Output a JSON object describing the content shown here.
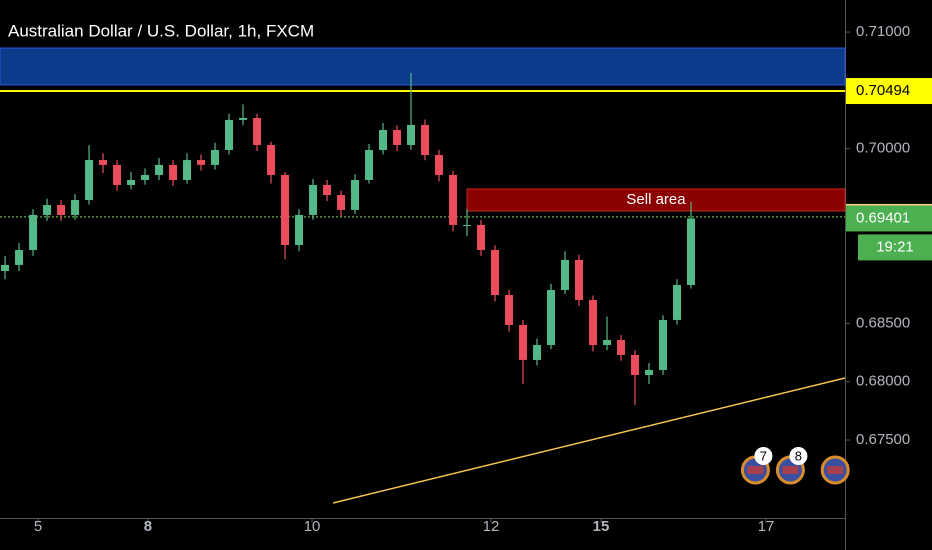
{
  "chart_data": {
    "type": "candlestick",
    "title": "Australian Dollar / U.S. Dollar, 1h, FXCM",
    "up_color": "#53b987",
    "down_color": "#eb4d5c",
    "xlim": [
      -0.36,
      60
    ],
    "ylim": [
      0.66831,
      0.71275
    ],
    "xticks": [
      {
        "value": 2.36,
        "label": "5"
      },
      {
        "value": 10.21,
        "label": "8",
        "bold": true
      },
      {
        "value": 21.93,
        "label": "10"
      },
      {
        "value": 34.71,
        "label": "12"
      },
      {
        "value": 42.57,
        "label": "15",
        "bold": true
      },
      {
        "value": 54.36,
        "label": "17"
      }
    ],
    "yticks": [
      {
        "value": 0.675,
        "label": "0.67500"
      },
      {
        "value": 0.68,
        "label": "0.68000"
      },
      {
        "value": 0.685,
        "label": "0.68500"
      },
      {
        "value": 0.7,
        "label": "0.70000"
      },
      {
        "value": 0.71,
        "label": "0.71000"
      }
    ],
    "open": [
      0.6895,
      0.69002,
      0.6913,
      0.69431,
      0.69516,
      0.69431,
      0.69559,
      0.69902,
      0.6986,
      0.69688,
      0.69731,
      0.69774,
      0.6986,
      0.69731,
      0.69902,
      0.6986,
      0.69988,
      0.70246,
      0.70263,
      0.70031,
      0.69774,
      0.69173,
      0.69431,
      0.69688,
      0.69602,
      0.69474,
      0.69731,
      0.69988,
      0.7016,
      0.70031,
      0.70203,
      0.69945,
      0.69774,
      0.69345,
      0.69345,
      0.6913,
      0.68744,
      0.68487,
      0.68187,
      0.68315,
      0.68787,
      0.69045,
      0.68701,
      0.68315,
      0.68358,
      0.6823,
      0.68058,
      0.68101,
      0.6853,
      0.6883
    ],
    "high": [
      0.6908,
      0.6919,
      0.6948,
      0.6957,
      0.6956,
      0.6961,
      0.7003,
      0.6996,
      0.699,
      0.698,
      0.6983,
      0.6992,
      0.699,
      0.6996,
      0.6995,
      0.7005,
      0.703,
      0.7038,
      0.703,
      0.7006,
      0.698,
      0.6948,
      0.6974,
      0.6973,
      0.6964,
      0.6978,
      0.7004,
      0.7022,
      0.702,
      0.7065,
      0.7025,
      0.6999,
      0.6981,
      0.6948,
      0.6939,
      0.6917,
      0.6879,
      0.6853,
      0.6837,
      0.6884,
      0.6912,
      0.6909,
      0.6874,
      0.6856,
      0.684,
      0.6827,
      0.6816,
      0.6857,
      0.6888,
      0.69542
    ],
    "low": [
      0.6888,
      0.6895,
      0.6908,
      0.6938,
      0.6938,
      0.6939,
      0.6952,
      0.6979,
      0.6964,
      0.6965,
      0.6969,
      0.6973,
      0.6968,
      0.697,
      0.6981,
      0.6982,
      0.6995,
      0.702,
      0.6998,
      0.697,
      0.6905,
      0.6912,
      0.6939,
      0.6955,
      0.6942,
      0.6944,
      0.697,
      0.6995,
      0.6998,
      0.6999,
      0.699,
      0.6972,
      0.6929,
      0.6925,
      0.6908,
      0.6869,
      0.6843,
      0.6798,
      0.6814,
      0.6828,
      0.6875,
      0.6865,
      0.6826,
      0.6827,
      0.6818,
      0.678,
      0.6798,
      0.6806,
      0.6849,
      0.688
    ],
    "close": [
      0.69002,
      0.6913,
      0.69431,
      0.69516,
      0.69431,
      0.69559,
      0.69902,
      0.6986,
      0.69688,
      0.69731,
      0.69774,
      0.6986,
      0.69731,
      0.69902,
      0.6986,
      0.69988,
      0.70246,
      0.70263,
      0.70031,
      0.69774,
      0.69173,
      0.69431,
      0.69688,
      0.69602,
      0.69474,
      0.69731,
      0.69988,
      0.7016,
      0.70031,
      0.70203,
      0.69945,
      0.69774,
      0.69345,
      0.69345,
      0.6913,
      0.68744,
      0.68487,
      0.68187,
      0.68315,
      0.68787,
      0.69045,
      0.68701,
      0.68315,
      0.68358,
      0.6823,
      0.68058,
      0.68101,
      0.6853,
      0.6883,
      0.69401
    ],
    "zones": [
      {
        "top": 0.70863,
        "bottom": 0.70546,
        "color": "#0d3b8c"
      },
      {
        "top": 0.69654,
        "bottom": 0.69465,
        "x0": 33.0,
        "color": "#8b0000",
        "label": "Sell area"
      }
    ],
    "hlines": [
      {
        "value": 0.70494,
        "color": "#ffff00",
        "dashed": false
      },
      {
        "value": 0.69414,
        "color": "#7ed957",
        "dashed": true
      }
    ],
    "trendline": {
      "x": [
        23.43,
        60
      ],
      "y": [
        0.6696,
        0.68032
      ],
      "color": "#f5c452"
    },
    "price_labels": [
      {
        "value": 0.70494,
        "color": "#ffff00"
      },
      {
        "value": 0.69414,
        "color": "#ffd27a"
      },
      {
        "value": 0.69401,
        "color": "#4caf50",
        "countdown": "19:21"
      }
    ],
    "events": [
      {
        "x": 53.6,
        "label": "7"
      },
      {
        "x": 56.1,
        "label": "8"
      },
      {
        "x": 59.3
      }
    ]
  }
}
